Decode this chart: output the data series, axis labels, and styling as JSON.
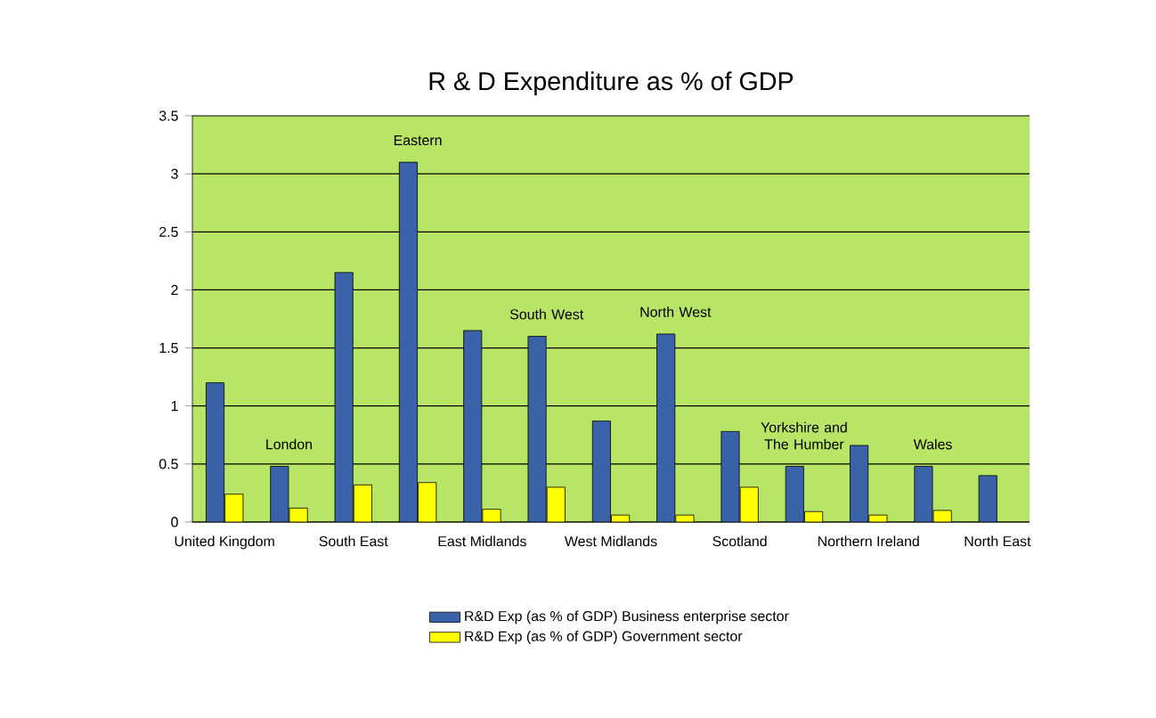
{
  "chart_data": {
    "type": "bar",
    "title": "R & D Expenditure as % of GDP",
    "categories": [
      "United Kingdom",
      "London",
      "South East",
      "Eastern",
      "East Midlands",
      "South West",
      "West Midlands",
      "North West",
      "Scotland",
      "Yorkshire and The Humber",
      "Northern Ireland",
      "Wales",
      "North East"
    ],
    "series": [
      {
        "name": "R&D Exp (as % of GDP) Business enterprise sector",
        "color": "#3a62a8",
        "values": [
          1.2,
          0.48,
          2.15,
          3.1,
          1.65,
          1.6,
          0.87,
          1.62,
          0.78,
          0.48,
          0.66,
          0.48,
          0.4
        ]
      },
      {
        "name": "R&D Exp (as % of GDP) Government sector",
        "color": "#ffff00",
        "values": [
          0.24,
          0.12,
          0.32,
          0.34,
          0.11,
          0.3,
          0.06,
          0.06,
          0.3,
          0.09,
          0.06,
          0.1,
          null
        ]
      }
    ],
    "ylim": [
      0,
      3.5
    ],
    "yticks": [
      0,
      0.5,
      1,
      1.5,
      2,
      2.5,
      3,
      3.5
    ],
    "grid": "y",
    "legend": "bottom"
  }
}
